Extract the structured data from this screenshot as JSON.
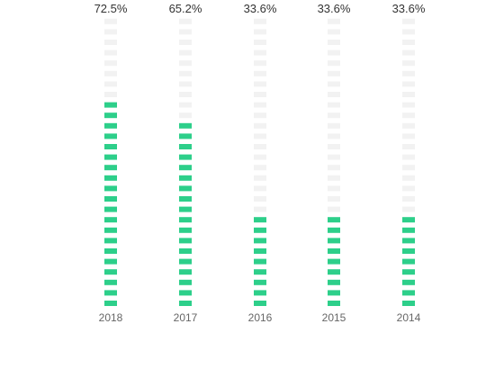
{
  "chart_data": {
    "type": "bar",
    "style": "segmented-vertical-bars",
    "categories": [
      "2018",
      "2017",
      "2016",
      "2015",
      "2014"
    ],
    "values": [
      72.5,
      65.2,
      33.6,
      33.6,
      33.6
    ],
    "value_labels": [
      "72.5%",
      "65.2%",
      "33.6%",
      "33.6%",
      "33.6%"
    ],
    "ylim": [
      0,
      100
    ],
    "grid": false,
    "legend": "none",
    "colors": {
      "filled": "#2dcf8a",
      "empty": "#f2f2f2",
      "value_text": "#333333",
      "tick_text": "#666666"
    }
  }
}
